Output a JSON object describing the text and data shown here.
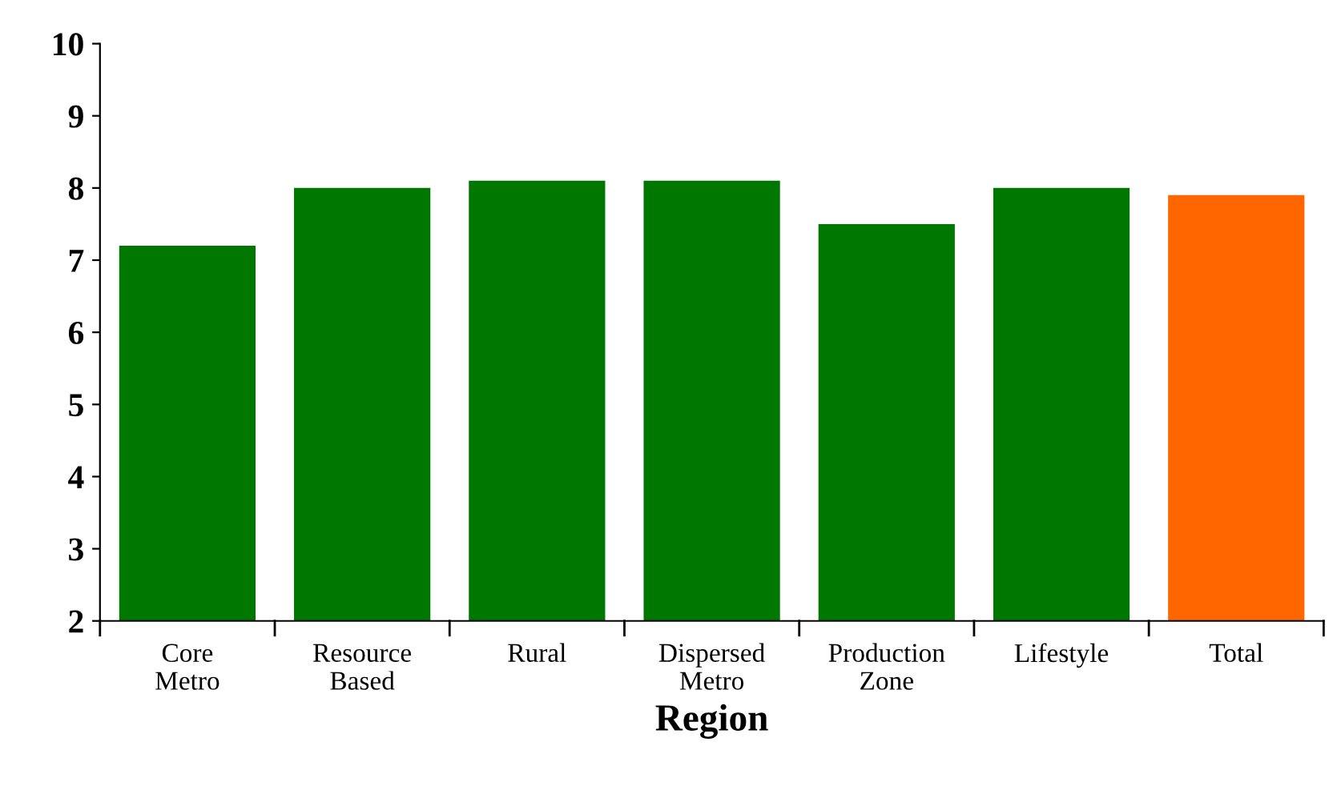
{
  "chart_data": {
    "type": "bar",
    "xlabel": "Region",
    "categories": [
      "Core\nMetro",
      "Resource\nBased",
      "Rural",
      "Dispersed\nMetro",
      "Production\nZone",
      "Lifestyle",
      "Total"
    ],
    "values": [
      7.2,
      8.0,
      8.1,
      8.1,
      7.5,
      8.0,
      7.9
    ],
    "colors": [
      "#007700",
      "#007700",
      "#007700",
      "#007700",
      "#007700",
      "#007700",
      "#ff6600"
    ],
    "ylim": [
      2,
      10
    ],
    "yticks": [
      2,
      3,
      4,
      5,
      6,
      7,
      8,
      9,
      10
    ],
    "grid": false,
    "legend": false
  }
}
